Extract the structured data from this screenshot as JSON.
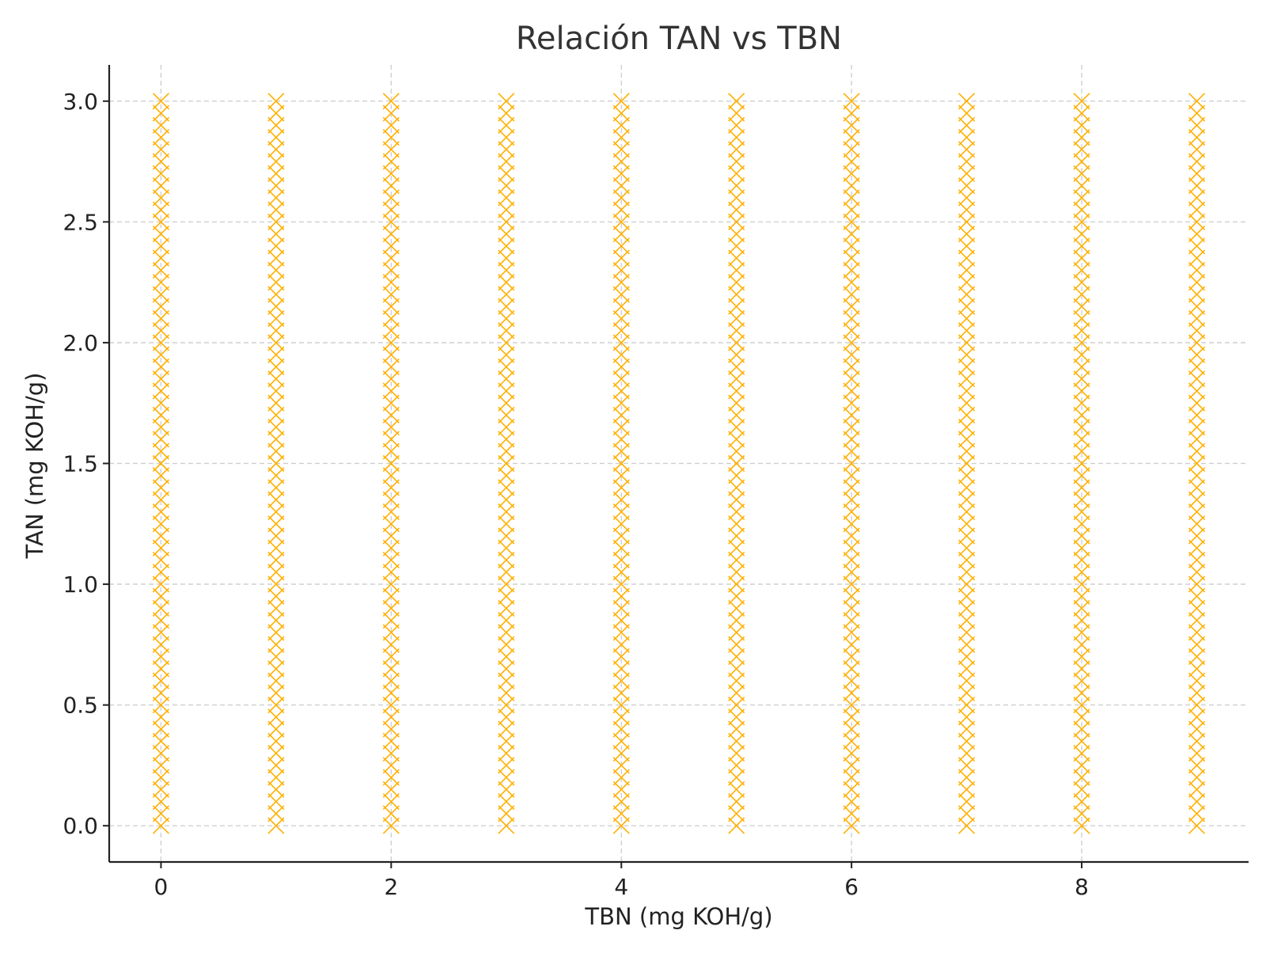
{
  "chart_data": {
    "type": "scatter",
    "title": "Relación TAN vs TBN",
    "xlabel": "TBN (mg KOH/g)",
    "ylabel": "TAN (mg KOH/g)",
    "xlim": [
      -0.45,
      9.45
    ],
    "ylim": [
      -0.15,
      3.15
    ],
    "xticks": [
      0,
      2,
      4,
      6,
      8
    ],
    "xtick_labels": [
      "0",
      "2",
      "4",
      "6",
      "8"
    ],
    "yticks": [
      0.0,
      0.5,
      1.0,
      1.5,
      2.0,
      2.5,
      3.0
    ],
    "ytick_labels": [
      "0.0",
      "0.5",
      "1.0",
      "1.5",
      "2.0",
      "2.5",
      "3.0"
    ],
    "grid": true,
    "marker": "x",
    "color": "#FFB000",
    "series": [
      {
        "x": [
          0,
          0,
          0,
          0,
          0,
          0,
          0,
          0,
          0,
          0,
          0,
          0,
          0,
          0,
          0,
          0,
          0,
          0,
          0,
          0,
          0,
          0,
          0,
          0,
          0,
          0,
          0,
          0,
          0,
          0,
          0,
          0,
          0,
          0,
          0,
          0,
          0,
          0,
          0,
          0,
          0,
          0,
          0,
          0,
          0,
          0,
          0,
          0,
          0,
          0,
          0,
          0,
          0,
          0,
          0,
          0,
          0,
          0,
          0,
          0,
          0,
          1,
          1,
          1,
          1,
          1,
          1,
          1,
          1,
          1,
          1,
          1,
          1,
          1,
          1,
          1,
          1,
          1,
          1,
          1,
          1,
          1,
          1,
          1,
          1,
          1,
          1,
          1,
          1,
          1,
          1,
          1,
          1,
          1,
          1,
          1,
          1,
          1,
          1,
          1,
          1,
          1,
          1,
          1,
          1,
          1,
          1,
          1,
          1,
          1,
          1,
          1,
          1,
          1,
          1,
          1,
          1,
          1,
          1,
          1,
          1,
          1,
          2,
          2,
          2,
          2,
          2,
          2,
          2,
          2,
          2,
          2,
          2,
          2,
          2,
          2,
          2,
          2,
          2,
          2,
          2,
          2,
          2,
          2,
          2,
          2,
          2,
          2,
          2,
          2,
          2,
          2,
          2,
          2,
          2,
          2,
          2,
          2,
          2,
          2,
          2,
          2,
          2,
          2,
          2,
          2,
          2,
          2,
          2,
          2,
          2,
          2,
          2,
          2,
          2,
          2,
          2,
          2,
          2,
          2,
          2,
          2,
          2,
          3,
          3,
          3,
          3,
          3,
          3,
          3,
          3,
          3,
          3,
          3,
          3,
          3,
          3,
          3,
          3,
          3,
          3,
          3,
          3,
          3,
          3,
          3,
          3,
          3,
          3,
          3,
          3,
          3,
          3,
          3,
          3,
          3,
          3,
          3,
          3,
          3,
          3,
          3,
          3,
          3,
          3,
          3,
          3,
          3,
          3,
          3,
          3,
          3,
          3,
          3,
          3,
          3,
          3,
          3,
          3,
          3,
          3,
          3,
          3,
          3,
          4,
          4,
          4,
          4,
          4,
          4,
          4,
          4,
          4,
          4,
          4,
          4,
          4,
          4,
          4,
          4,
          4,
          4,
          4,
          4,
          4,
          4,
          4,
          4,
          4,
          4,
          4,
          4,
          4,
          4,
          4,
          4,
          4,
          4,
          4,
          4,
          4,
          4,
          4,
          4,
          4,
          4,
          4,
          4,
          4,
          4,
          4,
          4,
          4,
          4,
          4,
          4,
          4,
          4,
          4,
          4,
          4,
          4,
          4,
          4,
          4,
          5,
          5,
          5,
          5,
          5,
          5,
          5,
          5,
          5,
          5,
          5,
          5,
          5,
          5,
          5,
          5,
          5,
          5,
          5,
          5,
          5,
          5,
          5,
          5,
          5,
          5,
          5,
          5,
          5,
          5,
          5,
          5,
          5,
          5,
          5,
          5,
          5,
          5,
          5,
          5,
          5,
          5,
          5,
          5,
          5,
          5,
          5,
          5,
          5,
          5,
          5,
          5,
          5,
          5,
          5,
          5,
          5,
          5,
          5,
          5,
          5,
          6,
          6,
          6,
          6,
          6,
          6,
          6,
          6,
          6,
          6,
          6,
          6,
          6,
          6,
          6,
          6,
          6,
          6,
          6,
          6,
          6,
          6,
          6,
          6,
          6,
          6,
          6,
          6,
          6,
          6,
          6,
          6,
          6,
          6,
          6,
          6,
          6,
          6,
          6,
          6,
          6,
          6,
          6,
          6,
          6,
          6,
          6,
          6,
          6,
          6,
          6,
          6,
          6,
          6,
          6,
          6,
          6,
          6,
          6,
          6,
          6,
          7,
          7,
          7,
          7,
          7,
          7,
          7,
          7,
          7,
          7,
          7,
          7,
          7,
          7,
          7,
          7,
          7,
          7,
          7,
          7,
          7,
          7,
          7,
          7,
          7,
          7,
          7,
          7,
          7,
          7,
          7,
          7,
          7,
          7,
          7,
          7,
          7,
          7,
          7,
          7,
          7,
          7,
          7,
          7,
          7,
          7,
          7,
          7,
          7,
          7,
          7,
          7,
          7,
          7,
          7,
          7,
          7,
          7,
          7,
          7,
          7,
          8,
          8,
          8,
          8,
          8,
          8,
          8,
          8,
          8,
          8,
          8,
          8,
          8,
          8,
          8,
          8,
          8,
          8,
          8,
          8,
          8,
          8,
          8,
          8,
          8,
          8,
          8,
          8,
          8,
          8,
          8,
          8,
          8,
          8,
          8,
          8,
          8,
          8,
          8,
          8,
          8,
          8,
          8,
          8,
          8,
          8,
          8,
          8,
          8,
          8,
          8,
          8,
          8,
          8,
          8,
          8,
          8,
          8,
          8,
          8,
          8,
          9,
          9,
          9,
          9,
          9,
          9,
          9,
          9,
          9,
          9,
          9,
          9,
          9,
          9,
          9,
          9,
          9,
          9,
          9,
          9,
          9,
          9,
          9,
          9,
          9,
          9,
          9,
          9,
          9,
          9,
          9,
          9,
          9,
          9,
          9,
          9,
          9,
          9,
          9,
          9,
          9,
          9,
          9,
          9,
          9,
          9,
          9,
          9,
          9,
          9,
          9,
          9,
          9,
          9,
          9,
          9,
          9,
          9,
          9,
          9,
          9
        ],
        "y": [
          0.0,
          0.05,
          0.1,
          0.15,
          0.2,
          0.25,
          0.3,
          0.35,
          0.4,
          0.45,
          0.5,
          0.55,
          0.6,
          0.65,
          0.7,
          0.75,
          0.8,
          0.85,
          0.9,
          0.95,
          1.0,
          1.05,
          1.1,
          1.15,
          1.2,
          1.25,
          1.3,
          1.35,
          1.4,
          1.45,
          1.5,
          1.55,
          1.6,
          1.65,
          1.7,
          1.75,
          1.8,
          1.85,
          1.9,
          1.95,
          2.0,
          2.05,
          2.1,
          2.15,
          2.2,
          2.25,
          2.3,
          2.35,
          2.4,
          2.45,
          2.5,
          2.55,
          2.6,
          2.65,
          2.7,
          2.75,
          2.8,
          2.85,
          2.9,
          2.95,
          3.0,
          0.0,
          0.05,
          0.1,
          0.15,
          0.2,
          0.25,
          0.3,
          0.35,
          0.4,
          0.45,
          0.5,
          0.55,
          0.6,
          0.65,
          0.7,
          0.75,
          0.8,
          0.85,
          0.9,
          0.95,
          1.0,
          1.05,
          1.1,
          1.15,
          1.2,
          1.25,
          1.3,
          1.35,
          1.4,
          1.45,
          1.5,
          1.55,
          1.6,
          1.65,
          1.7,
          1.75,
          1.8,
          1.85,
          1.9,
          1.95,
          2.0,
          2.05,
          2.1,
          2.15,
          2.2,
          2.25,
          2.3,
          2.35,
          2.4,
          2.45,
          2.5,
          2.55,
          2.6,
          2.65,
          2.7,
          2.75,
          2.8,
          2.85,
          2.9,
          2.95,
          3.0,
          0.0,
          0.05,
          0.1,
          0.15,
          0.2,
          0.25,
          0.3,
          0.35,
          0.4,
          0.45,
          0.5,
          0.55,
          0.6,
          0.65,
          0.7,
          0.75,
          0.8,
          0.85,
          0.9,
          0.95,
          1.0,
          1.05,
          1.1,
          1.15,
          1.2,
          1.25,
          1.3,
          1.35,
          1.4,
          1.45,
          1.5,
          1.55,
          1.6,
          1.65,
          1.7,
          1.75,
          1.8,
          1.85,
          1.9,
          1.95,
          2.0,
          2.05,
          2.1,
          2.15,
          2.2,
          2.25,
          2.3,
          2.35,
          2.4,
          2.45,
          2.5,
          2.55,
          2.6,
          2.65,
          2.7,
          2.75,
          2.8,
          2.85,
          2.9,
          2.95,
          3.0,
          0.0,
          0.05,
          0.1,
          0.15,
          0.2,
          0.25,
          0.3,
          0.35,
          0.4,
          0.45,
          0.5,
          0.55,
          0.6,
          0.65,
          0.7,
          0.75,
          0.8,
          0.85,
          0.9,
          0.95,
          1.0,
          1.05,
          1.1,
          1.15,
          1.2,
          1.25,
          1.3,
          1.35,
          1.4,
          1.45,
          1.5,
          1.55,
          1.6,
          1.65,
          1.7,
          1.75,
          1.8,
          1.85,
          1.9,
          1.95,
          2.0,
          2.05,
          2.1,
          2.15,
          2.2,
          2.25,
          2.3,
          2.35,
          2.4,
          2.45,
          2.5,
          2.55,
          2.6,
          2.65,
          2.7,
          2.75,
          2.8,
          2.85,
          2.9,
          2.95,
          3.0,
          0.0,
          0.05,
          0.1,
          0.15,
          0.2,
          0.25,
          0.3,
          0.35,
          0.4,
          0.45,
          0.5,
          0.55,
          0.6,
          0.65,
          0.7,
          0.75,
          0.8,
          0.85,
          0.9,
          0.95,
          1.0,
          1.05,
          1.1,
          1.15,
          1.2,
          1.25,
          1.3,
          1.35,
          1.4,
          1.45,
          1.5,
          1.55,
          1.6,
          1.65,
          1.7,
          1.75,
          1.8,
          1.85,
          1.9,
          1.95,
          2.0,
          2.05,
          2.1,
          2.15,
          2.2,
          2.25,
          2.3,
          2.35,
          2.4,
          2.45,
          2.5,
          2.55,
          2.6,
          2.65,
          2.7,
          2.75,
          2.8,
          2.85,
          2.9,
          2.95,
          3.0,
          0.0,
          0.05,
          0.1,
          0.15,
          0.2,
          0.25,
          0.3,
          0.35,
          0.4,
          0.45,
          0.5,
          0.55,
          0.6,
          0.65,
          0.7,
          0.75,
          0.8,
          0.85,
          0.9,
          0.95,
          1.0,
          1.05,
          1.1,
          1.15,
          1.2,
          1.25,
          1.3,
          1.35,
          1.4,
          1.45,
          1.5,
          1.55,
          1.6,
          1.65,
          1.7,
          1.75,
          1.8,
          1.85,
          1.9,
          1.95,
          2.0,
          2.05,
          2.1,
          2.15,
          2.2,
          2.25,
          2.3,
          2.35,
          2.4,
          2.45,
          2.5,
          2.55,
          2.6,
          2.65,
          2.7,
          2.75,
          2.8,
          2.85,
          2.9,
          2.95,
          3.0,
          0.0,
          0.05,
          0.1,
          0.15,
          0.2,
          0.25,
          0.3,
          0.35,
          0.4,
          0.45,
          0.5,
          0.55,
          0.6,
          0.65,
          0.7,
          0.75,
          0.8,
          0.85,
          0.9,
          0.95,
          1.0,
          1.05,
          1.1,
          1.15,
          1.2,
          1.25,
          1.3,
          1.35,
          1.4,
          1.45,
          1.5,
          1.55,
          1.6,
          1.65,
          1.7,
          1.75,
          1.8,
          1.85,
          1.9,
          1.95,
          2.0,
          2.05,
          2.1,
          2.15,
          2.2,
          2.25,
          2.3,
          2.35,
          2.4,
          2.45,
          2.5,
          2.55,
          2.6,
          2.65,
          2.7,
          2.75,
          2.8,
          2.85,
          2.9,
          2.95,
          3.0,
          0.0,
          0.05,
          0.1,
          0.15,
          0.2,
          0.25,
          0.3,
          0.35,
          0.4,
          0.45,
          0.5,
          0.55,
          0.6,
          0.65,
          0.7,
          0.75,
          0.8,
          0.85,
          0.9,
          0.95,
          1.0,
          1.05,
          1.1,
          1.15,
          1.2,
          1.25,
          1.3,
          1.35,
          1.4,
          1.45,
          1.5,
          1.55,
          1.6,
          1.65,
          1.7,
          1.75,
          1.8,
          1.85,
          1.9,
          1.95,
          2.0,
          2.05,
          2.1,
          2.15,
          2.2,
          2.25,
          2.3,
          2.35,
          2.4,
          2.45,
          2.5,
          2.55,
          2.6,
          2.65,
          2.7,
          2.75,
          2.8,
          2.85,
          2.9,
          2.95,
          3.0,
          0.0,
          0.05,
          0.1,
          0.15,
          0.2,
          0.25,
          0.3,
          0.35,
          0.4,
          0.45,
          0.5,
          0.55,
          0.6,
          0.65,
          0.7,
          0.75,
          0.8,
          0.85,
          0.9,
          0.95,
          1.0,
          1.05,
          1.1,
          1.15,
          1.2,
          1.25,
          1.3,
          1.35,
          1.4,
          1.45,
          1.5,
          1.55,
          1.6,
          1.65,
          1.7,
          1.75,
          1.8,
          1.85,
          1.9,
          1.95,
          2.0,
          2.05,
          2.1,
          2.15,
          2.2,
          2.25,
          2.3,
          2.35,
          2.4,
          2.45,
          2.5,
          2.55,
          2.6,
          2.65,
          2.7,
          2.75,
          2.8,
          2.85,
          2.9,
          2.95,
          3.0,
          0.0,
          0.05,
          0.1,
          0.15,
          0.2,
          0.25,
          0.3,
          0.35,
          0.4,
          0.45,
          0.5,
          0.55,
          0.6,
          0.65,
          0.7,
          0.75,
          0.8,
          0.85,
          0.9,
          0.95,
          1.0,
          1.05,
          1.1,
          1.15,
          1.2,
          1.25,
          1.3,
          1.35,
          1.4,
          1.45,
          1.5,
          1.55,
          1.6,
          1.65,
          1.7,
          1.75,
          1.8,
          1.85,
          1.9,
          1.95,
          2.0,
          2.05,
          2.1,
          2.15,
          2.2,
          2.25,
          2.3,
          2.35,
          2.4,
          2.45,
          2.5,
          2.55,
          2.6,
          2.65,
          2.7,
          2.75,
          2.8,
          2.85,
          2.9,
          2.95,
          3.0
        ]
      }
    ]
  }
}
